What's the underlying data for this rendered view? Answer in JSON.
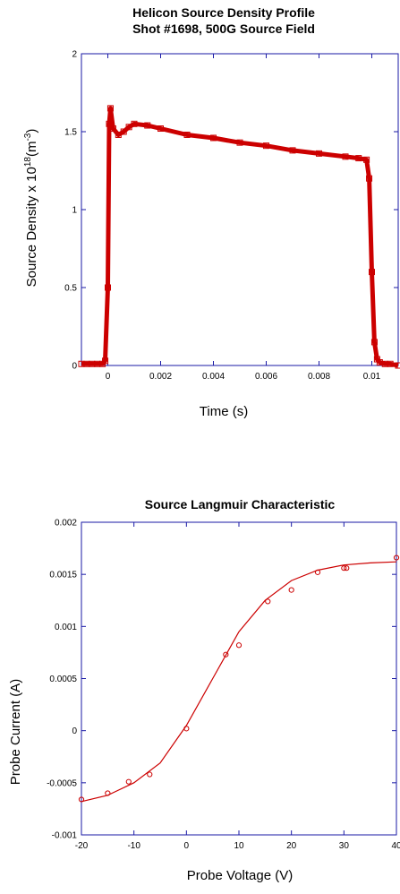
{
  "colors": {
    "axes": "#1a1aa6",
    "data": "#cc0000"
  },
  "chart_data": [
    {
      "type": "scatter",
      "title_lines": [
        "Helicon Source Density Profile",
        "Shot #1698, 500G Source Field"
      ],
      "xlabel": "Time (s)",
      "ylabel_parts": {
        "pre": "Source Density x 10",
        "sup1": "18",
        "mid": "(m",
        "sup2": "-3",
        "post": ")"
      },
      "xlim": [
        -0.001,
        0.011
      ],
      "ylim": [
        0,
        2
      ],
      "xticks": [
        0,
        0.002,
        0.004,
        0.006,
        0.008,
        0.01
      ],
      "xtick_labels": [
        "0",
        "0.002",
        "0.004",
        "0.006",
        "0.008",
        "0.01"
      ],
      "yticks": [
        0,
        0.5,
        1,
        1.5,
        2
      ],
      "ytick_labels": [
        "0",
        "0.5",
        "1",
        "1.5",
        "2"
      ],
      "grid": false,
      "marker": "square",
      "series": [
        {
          "x": [
            -0.001,
            -0.0008,
            -0.0006,
            -0.0004,
            -0.0002,
            -0.0001,
            0.0,
            5e-05,
            0.0001,
            0.0002,
            0.0004,
            0.0006,
            0.0008,
            0.001,
            0.0015,
            0.002,
            0.003,
            0.004,
            0.005,
            0.006,
            0.007,
            0.008,
            0.009,
            0.0095,
            0.0098,
            0.0099,
            0.01,
            0.0101,
            0.0102,
            0.0103,
            0.0105,
            0.0107,
            0.011
          ],
          "y": [
            0.01,
            0.01,
            0.01,
            0.01,
            0.01,
            0.03,
            0.5,
            1.55,
            1.65,
            1.52,
            1.48,
            1.5,
            1.53,
            1.55,
            1.54,
            1.52,
            1.48,
            1.46,
            1.43,
            1.41,
            1.38,
            1.36,
            1.34,
            1.33,
            1.32,
            1.2,
            0.6,
            0.15,
            0.04,
            0.02,
            0.01,
            0.01,
            0.0
          ]
        }
      ]
    },
    {
      "type": "scatter",
      "title_lines": [
        "Source Langmuir Characteristic"
      ],
      "xlabel": "Probe Voltage (V)",
      "ylabel": "Probe Current (A)",
      "xlim": [
        -20,
        40
      ],
      "ylim": [
        -0.001,
        0.002
      ],
      "xticks": [
        -20,
        -10,
        0,
        10,
        20,
        30,
        40
      ],
      "xtick_labels": [
        "-20",
        "-10",
        "0",
        "10",
        "20",
        "30",
        "40"
      ],
      "yticks": [
        -0.001,
        -0.0005,
        0,
        0.0005,
        0.001,
        0.0015,
        0.002
      ],
      "ytick_labels": [
        "-0.001",
        "-0.0005",
        "0",
        "0.0005",
        "0.001",
        "0.0015",
        "0.002"
      ],
      "grid": false,
      "marker": "circle",
      "series": [
        {
          "x": [
            -20,
            -15,
            -11,
            -7,
            0,
            7.5,
            10,
            15.5,
            20,
            25,
            30,
            30.5,
            40
          ],
          "y": [
            -0.00066,
            -0.0006,
            -0.00049,
            -0.00042,
            2e-05,
            0.00073,
            0.00082,
            0.00124,
            0.00135,
            0.00152,
            0.00156,
            0.00156,
            0.00166
          ]
        }
      ],
      "fit": {
        "x": [
          -20,
          -15,
          -10,
          -5,
          0,
          5,
          10,
          15,
          20,
          25,
          30,
          35,
          40
        ],
        "y": [
          -0.00068,
          -0.00062,
          -0.0005,
          -0.00031,
          5e-05,
          0.0005,
          0.00095,
          0.00125,
          0.00144,
          0.00154,
          0.00159,
          0.00161,
          0.00162
        ]
      }
    }
  ]
}
